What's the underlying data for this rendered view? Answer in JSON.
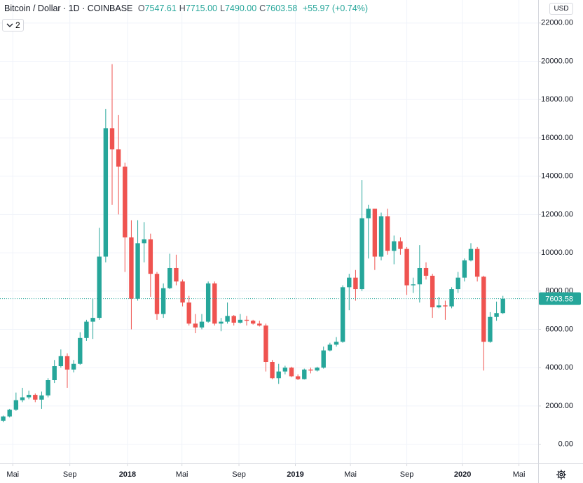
{
  "chart_data": {
    "type": "candlestick",
    "title": "Bitcoin / Dollar · 1D · COINBASE",
    "ohlc": [
      {
        "prefix": "O",
        "text": "7547.61"
      },
      {
        "prefix": "H",
        "text": "7715.00"
      },
      {
        "prefix": "L",
        "text": "7490.00"
      },
      {
        "prefix": "C",
        "text": "7603.58"
      }
    ],
    "change": "+55.97 (+0.74%)",
    "currency": "USD",
    "indicator_count": "2",
    "up_color": "#26a69a",
    "down_color": "#ef5350",
    "grid": true,
    "last_price": 7603.58,
    "xlim": [
      0,
      84
    ],
    "ylim": [
      -1000,
      23200
    ],
    "xticks": [
      {
        "value": 2,
        "label": "Mai"
      },
      {
        "value": 10.9,
        "label": "Sep"
      },
      {
        "value": 19.9,
        "label": "2018"
      },
      {
        "value": 28.4,
        "label": "Mai"
      },
      {
        "value": 37.3,
        "label": "Sep"
      },
      {
        "value": 46.1,
        "label": "2019"
      },
      {
        "value": 54.7,
        "label": "Mai"
      },
      {
        "value": 63.5,
        "label": "Sep"
      },
      {
        "value": 72.2,
        "label": "2020"
      },
      {
        "value": 81,
        "label": "Mai"
      }
    ],
    "yticks": [
      {
        "value": 0,
        "label": "0.00"
      },
      {
        "value": 2000,
        "label": "2000.00"
      },
      {
        "value": 4000,
        "label": "4000.00"
      },
      {
        "value": 6000,
        "label": "6000.00"
      },
      {
        "value": 8000,
        "label": "8000.00"
      },
      {
        "value": 10000,
        "label": "10000.00"
      },
      {
        "value": 12000,
        "label": "12000.00"
      },
      {
        "value": 14000,
        "label": "14000.00"
      },
      {
        "value": 16000,
        "label": "16000.00"
      },
      {
        "value": 18000,
        "label": "18000.00"
      },
      {
        "value": 20000,
        "label": "20000.00"
      },
      {
        "value": 22000,
        "label": "22000.00"
      }
    ],
    "series": [
      {
        "x": [
          0.5,
          1.5,
          2.5,
          3.5,
          4.5,
          5.5,
          6.5,
          7.5,
          8.5,
          9.5,
          10.5,
          11.5,
          12.5,
          13.5,
          14.5,
          15.5,
          16.5,
          17.5,
          18.5,
          19.5,
          20.5,
          21.5,
          22.5,
          23.5,
          24.5,
          25.5,
          26.5,
          27.5,
          28.5,
          29.5,
          30.5,
          31.5,
          32.5,
          33.5,
          34.5,
          35.5,
          36.5,
          37.5,
          38.5,
          39.5,
          40.5,
          41.5,
          42.5,
          43.5,
          44.5,
          45.5,
          46.5,
          47.5,
          48.5,
          49.5,
          50.5,
          51.5,
          52.5,
          53.5,
          54.5,
          55.5,
          56.5,
          57.5,
          58.5,
          59.5,
          60.5,
          61.5,
          62.5,
          63.5,
          64.5,
          65.5,
          66.5,
          67.5,
          68.5,
          69.5,
          70.5,
          71.5,
          72.5,
          73.5,
          74.5,
          75.5,
          76.5,
          77.5,
          78.5
        ],
        "open": [
          1230,
          1450,
          1800,
          2300,
          2450,
          2580,
          2330,
          2550,
          3350,
          4080,
          4600,
          3900,
          4200,
          5550,
          6400,
          6600,
          9800,
          16500,
          15400,
          14500,
          10800,
          7600,
          10500,
          10700,
          8900,
          6800,
          8150,
          9200,
          8500,
          7400,
          6300,
          6100,
          6400,
          8400,
          6300,
          6400,
          6700,
          6350,
          6500,
          6450,
          6300,
          6200,
          4300,
          3450,
          3800,
          4000,
          3550,
          3400,
          3900,
          3850,
          4000,
          4900,
          5200,
          5350,
          8200,
          8700,
          8100,
          11800,
          12300,
          9800,
          11900,
          10100,
          10600,
          10200,
          8300,
          8350,
          9200,
          8800,
          7150,
          7250,
          7200,
          8100,
          8700,
          9600,
          10200,
          8750,
          5350,
          6650,
          6850
        ],
        "high": [
          1500,
          1850,
          2700,
          2950,
          2800,
          2650,
          2750,
          3450,
          4400,
          4950,
          4750,
          4400,
          5850,
          6500,
          7600,
          11300,
          17500,
          19850,
          17200,
          14700,
          11700,
          11700,
          11600,
          11000,
          9000,
          8400,
          9950,
          9900,
          8600,
          7750,
          6800,
          6800,
          8500,
          8500,
          6600,
          7400,
          6750,
          6800,
          6700,
          6500,
          6450,
          6300,
          4400,
          4200,
          4100,
          4050,
          3650,
          3950,
          4000,
          4050,
          5100,
          5300,
          5600,
          8300,
          8900,
          9100,
          13800,
          12500,
          12300,
          12100,
          12300,
          10900,
          10800,
          10300,
          8700,
          10400,
          9500,
          8900,
          7700,
          7500,
          8200,
          9000,
          9700,
          10500,
          10300,
          8800,
          6900,
          7450,
          7750
        ],
        "low": [
          1150,
          1400,
          1750,
          2200,
          2350,
          2200,
          1850,
          2450,
          3200,
          4000,
          2950,
          3750,
          4150,
          5400,
          5500,
          6500,
          9500,
          12500,
          12000,
          9000,
          6000,
          7500,
          9500,
          7700,
          6500,
          6600,
          8100,
          8300,
          7200,
          6200,
          5800,
          6000,
          6350,
          6200,
          5900,
          6300,
          6200,
          6300,
          6200,
          6250,
          6150,
          3800,
          3400,
          3150,
          3650,
          3500,
          3350,
          3380,
          3700,
          3800,
          3950,
          4850,
          5100,
          5300,
          7000,
          7500,
          8000,
          9700,
          9100,
          9600,
          9900,
          9400,
          9900,
          7800,
          7900,
          7400,
          8600,
          6600,
          7100,
          6500,
          7100,
          7900,
          8500,
          9550,
          8500,
          3850,
          5300,
          6450,
          6800
        ],
        "close": [
          1450,
          1800,
          2300,
          2450,
          2580,
          2330,
          2550,
          3350,
          4080,
          4600,
          3900,
          4200,
          5550,
          6400,
          6600,
          9800,
          16500,
          15400,
          14500,
          10800,
          7600,
          10500,
          10700,
          8900,
          6800,
          8150,
          9200,
          8500,
          7400,
          6300,
          6100,
          6400,
          8400,
          6300,
          6400,
          6700,
          6350,
          6500,
          6450,
          6300,
          6200,
          4300,
          3450,
          3800,
          4000,
          3550,
          3400,
          3900,
          3850,
          4000,
          4900,
          5200,
          5350,
          8200,
          8700,
          8100,
          11800,
          12300,
          9800,
          11900,
          10100,
          10600,
          10200,
          8300,
          8350,
          9200,
          8800,
          7150,
          7250,
          7200,
          8100,
          8700,
          9600,
          10200,
          8750,
          5350,
          6650,
          6850,
          7603.58
        ]
      }
    ]
  }
}
